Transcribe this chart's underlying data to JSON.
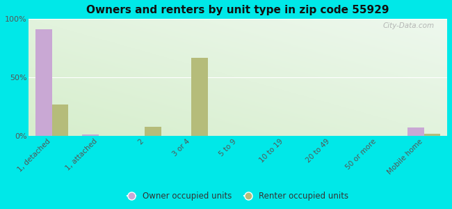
{
  "title": "Owners and renters by unit type in zip code 55929",
  "categories": [
    "1, detached",
    "1, attached",
    "2",
    "3 or 4",
    "5 to 9",
    "10 to 19",
    "20 to 49",
    "50 or more",
    "Mobile home"
  ],
  "owner_values": [
    91,
    1,
    0,
    0,
    0,
    0,
    0,
    0,
    7
  ],
  "renter_values": [
    27,
    0,
    8,
    67,
    0,
    0,
    0,
    0,
    2
  ],
  "owner_color": "#c9a8d4",
  "renter_color": "#b5bc7a",
  "bg_color_topleft": "#d6eecc",
  "bg_color_topright": "#eef8ee",
  "bg_color_bottom": "#e0f0d0",
  "outer_bg": "#00e8e8",
  "ylim": [
    0,
    100
  ],
  "yticks": [
    0,
    50,
    100
  ],
  "ytick_labels": [
    "0%",
    "50%",
    "100%"
  ],
  "bar_width": 0.35,
  "legend_owner": "Owner occupied units",
  "legend_renter": "Renter occupied units",
  "watermark": "City-Data.com"
}
